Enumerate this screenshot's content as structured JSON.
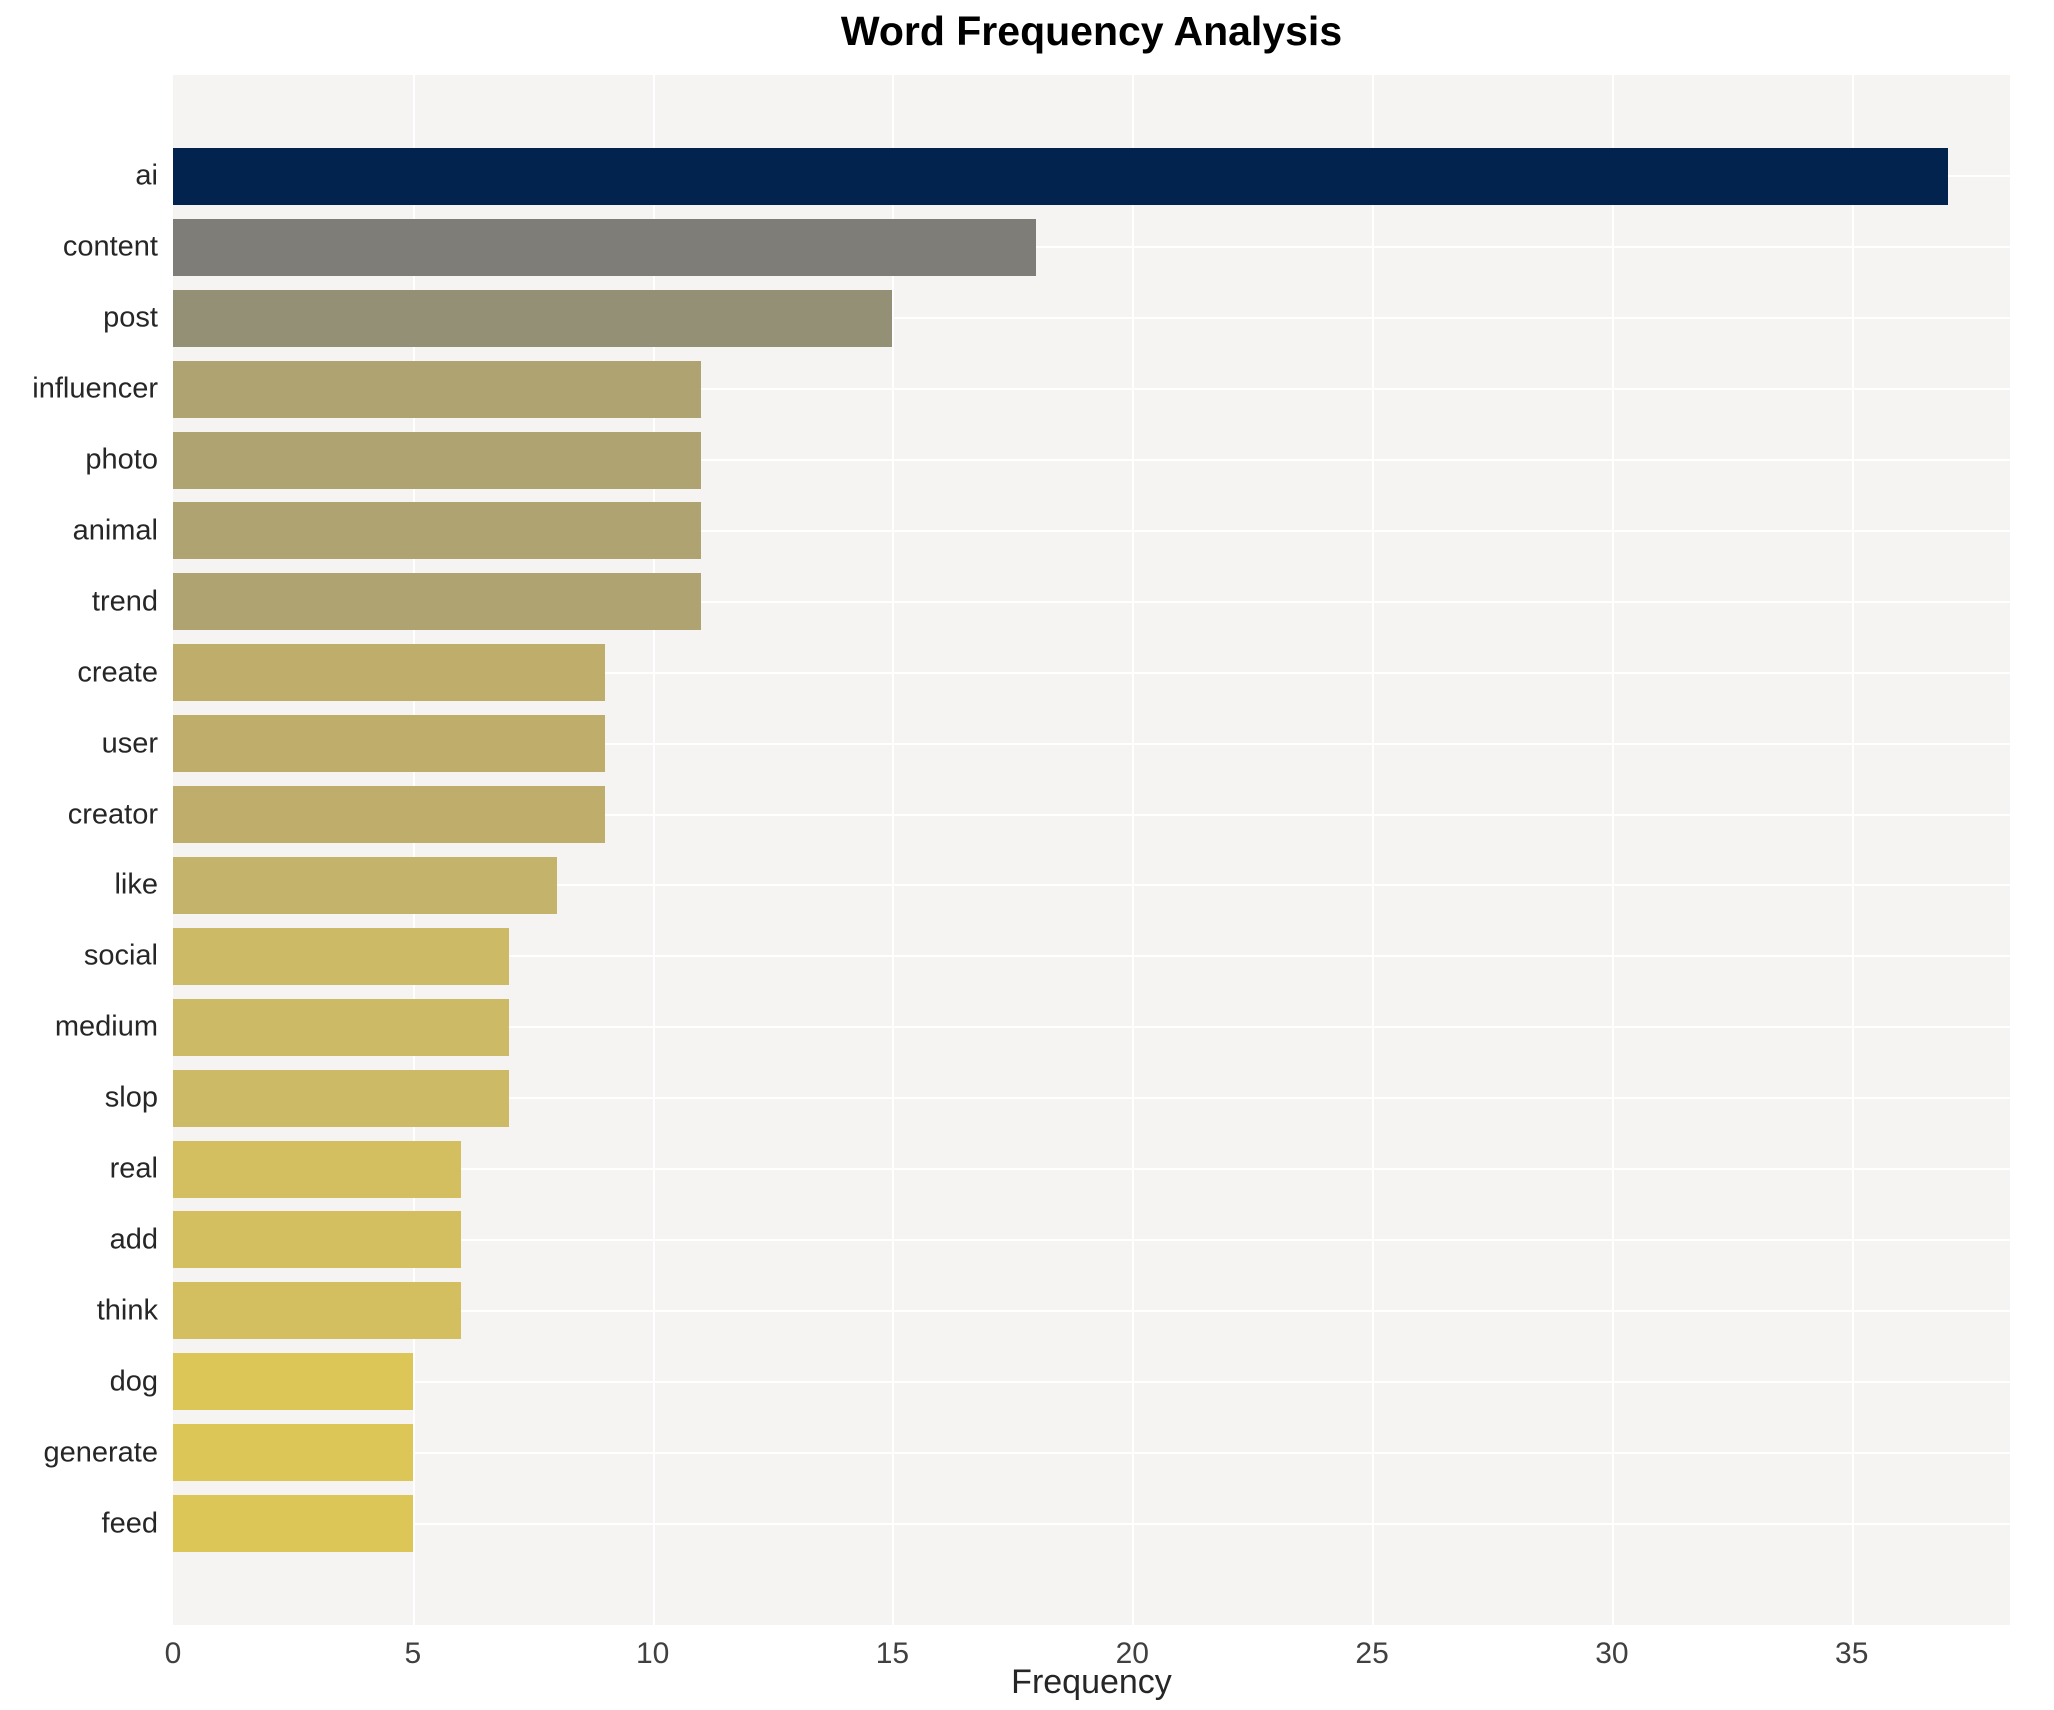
{
  "title": "Word Frequency Analysis",
  "chart_data": {
    "type": "bar",
    "orientation": "horizontal",
    "title": "Word Frequency Analysis",
    "xlabel": "Frequency",
    "ylabel": "",
    "categories": [
      "ai",
      "content",
      "post",
      "influencer",
      "photo",
      "animal",
      "trend",
      "create",
      "user",
      "creator",
      "like",
      "social",
      "medium",
      "slop",
      "real",
      "add",
      "think",
      "dog",
      "generate",
      "feed"
    ],
    "values": [
      37,
      18,
      15,
      11,
      11,
      11,
      11,
      9,
      9,
      9,
      8,
      7,
      7,
      7,
      6,
      6,
      6,
      5,
      5,
      5
    ],
    "bar_colors": [
      "#02234d",
      "#7e7d78",
      "#949076",
      "#aea371",
      "#aea371",
      "#aea371",
      "#aea371",
      "#bfae6b",
      "#bfae6b",
      "#bfae6b",
      "#c4b36b",
      "#cdba66",
      "#cdba66",
      "#cdba66",
      "#d3be60",
      "#d3be60",
      "#d3be60",
      "#dcc658",
      "#dcc658",
      "#dcc658"
    ],
    "x_ticks": [
      0,
      5,
      10,
      15,
      20,
      25,
      30,
      35
    ],
    "xlim": [
      0,
      38.3
    ],
    "grid": "white major vertical gridlines and horizontal row-center gridlines on light gray panel",
    "plot_background": "#f5f4f2",
    "legend": false
  }
}
